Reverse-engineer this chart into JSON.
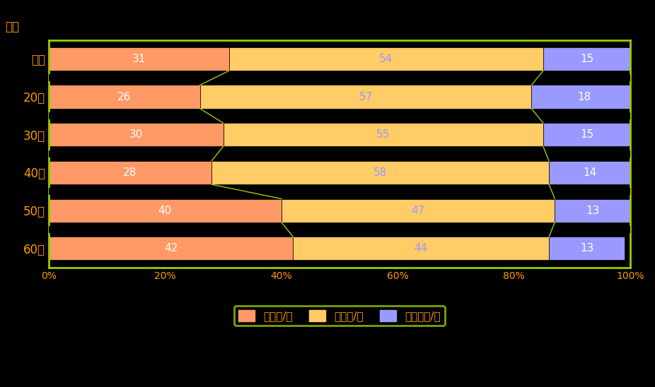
{
  "categories": [
    "全体",
    "20代",
    "30代",
    "40代",
    "50代",
    "60代"
  ],
  "series": [
    {
      "label": "１回位/週",
      "color": "#FF9966",
      "values": [
        31,
        26,
        30,
        28,
        40,
        42
      ]
    },
    {
      "label": "２回位/月",
      "color": "#FFCC66",
      "values": [
        54,
        57,
        55,
        58,
        47,
        44
      ]
    },
    {
      "label": "１回以下/月",
      "color": "#9999FF",
      "values": [
        15,
        18,
        15,
        14,
        13,
        13
      ]
    }
  ],
  "background_color": "#000000",
  "plot_bg_color": "#000000",
  "bar_border_color": "#000000",
  "chart_border_color": "#99CC00",
  "value_colors": [
    "#FFFFFF",
    "#9999FF",
    "#FFFFFF"
  ],
  "legend_bg_color": "#000000",
  "legend_border_color": "#99CC00",
  "legend_text_color": "#FF9900",
  "axis_label_color": "#FF9900",
  "tick_label_color": "#FF9900",
  "ylabel_text": "年代",
  "connector_color": "#99CC00",
  "gap_color": "#000000"
}
